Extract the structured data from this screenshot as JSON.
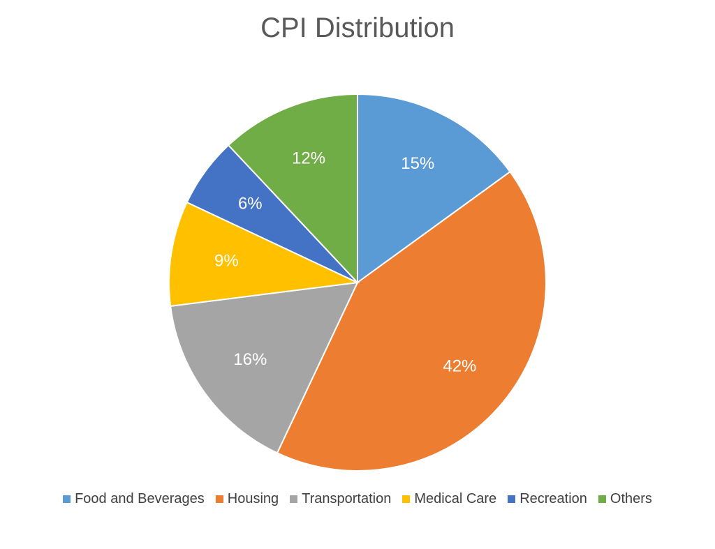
{
  "chart_data": {
    "type": "pie",
    "title": "CPI Distribution",
    "categories": [
      "Food and Beverages",
      "Housing",
      "Transportation",
      "Medical Care",
      "Recreation",
      "Others"
    ],
    "values": [
      15,
      42,
      16,
      9,
      6,
      12
    ],
    "labels": [
      "15%",
      "42%",
      "16%",
      "9%",
      "6%",
      "12%"
    ],
    "colors": [
      "#5B9BD5",
      "#ED7D31",
      "#A5A5A5",
      "#FFC000",
      "#4472C4",
      "#70AD47"
    ],
    "legend_position": "bottom",
    "start_angle": "top, clockwise"
  }
}
